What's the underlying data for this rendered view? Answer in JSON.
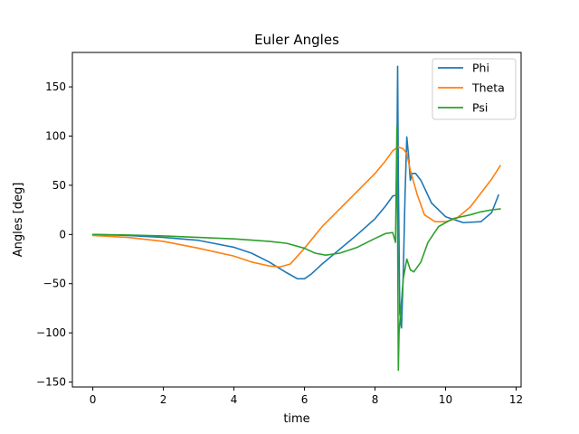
{
  "chart_data": {
    "type": "line",
    "title": "Euler Angles",
    "xlabel": "time",
    "ylabel": "Angles [deg]",
    "xlim": [
      -0.58,
      12.14
    ],
    "ylim": [
      -155,
      185
    ],
    "xticks": [
      0,
      2,
      4,
      6,
      8,
      10,
      12
    ],
    "yticks": [
      -150,
      -100,
      -50,
      0,
      50,
      100,
      150
    ],
    "xtick_labels": [
      "0",
      "2",
      "4",
      "6",
      "8",
      "10",
      "12"
    ],
    "ytick_labels": [
      "−150",
      "−100",
      "−50",
      "0",
      "50",
      "100",
      "150"
    ],
    "grid": false,
    "legend_position": "top-right",
    "series": [
      {
        "name": "Phi",
        "color": "#1f77b4",
        "x": [
          0,
          1,
          2,
          3,
          4,
          4.5,
          5,
          5.5,
          5.8,
          6,
          6.2,
          6.5,
          7,
          7.5,
          8,
          8.3,
          8.5,
          8.6,
          8.62,
          8.64,
          8.66,
          8.7,
          8.75,
          8.8,
          8.85,
          8.9,
          8.95,
          9.0,
          9.05,
          9.15,
          9.3,
          9.6,
          10,
          10.5,
          11,
          11.3,
          11.5
        ],
        "y": [
          0,
          -1,
          -3,
          -6,
          -13,
          -19,
          -28,
          -39,
          -45,
          -45,
          -40,
          -30,
          -15,
          0,
          16,
          29,
          39,
          40,
          80,
          171,
          60,
          -80,
          -95,
          -40,
          40,
          99,
          80,
          55,
          62,
          62,
          55,
          32,
          18,
          12,
          13,
          22,
          40
        ]
      },
      {
        "name": "Theta",
        "color": "#ff7f0e",
        "x": [
          0,
          1,
          2,
          3,
          4,
          4.5,
          5,
          5.3,
          5.6,
          6,
          6.5,
          7,
          7.5,
          8,
          8.3,
          8.5,
          8.65,
          8.8,
          8.9,
          9.0,
          9.2,
          9.4,
          9.7,
          10,
          10.3,
          10.7,
          11,
          11.3,
          11.55
        ],
        "y": [
          -1,
          -3,
          -7,
          -14,
          -22,
          -28,
          -32,
          -33,
          -30,
          -14,
          8,
          26,
          44,
          62,
          75,
          85,
          89,
          87,
          82,
          65,
          40,
          20,
          13,
          13,
          16,
          28,
          42,
          56,
          70
        ]
      },
      {
        "name": "Psi",
        "color": "#2ca02c",
        "x": [
          0,
          1,
          2,
          3,
          4,
          5,
          5.5,
          6,
          6.3,
          6.6,
          7,
          7.5,
          8,
          8.3,
          8.5,
          8.58,
          8.62,
          8.64,
          8.66,
          8.68,
          8.7,
          8.8,
          8.9,
          9.0,
          9.1,
          9.3,
          9.5,
          9.8,
          10.2,
          10.7,
          11,
          11.3,
          11.55
        ],
        "y": [
          0,
          -0.5,
          -1.5,
          -3,
          -4.5,
          -7,
          -9,
          -14,
          -19,
          -21,
          -19,
          -13,
          -4,
          1,
          2,
          -8,
          110,
          0,
          -138,
          -100,
          -90,
          -45,
          -25,
          -36,
          -38,
          -28,
          -8,
          8,
          16,
          20,
          23,
          25,
          26
        ]
      }
    ]
  }
}
